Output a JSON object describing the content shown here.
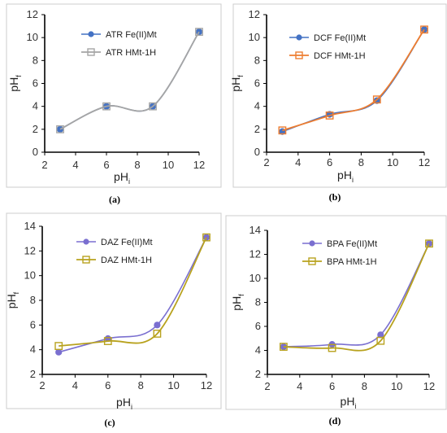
{
  "chart_data": [
    {
      "type": "line",
      "panel_label": "(a)",
      "xlabel": "pH",
      "xlabel_sub": "i",
      "ylabel": "pH",
      "ylabel_sub": "f",
      "xlim": [
        2,
        12
      ],
      "ylim": [
        0,
        12
      ],
      "xticks": [
        2,
        4,
        6,
        8,
        10,
        12
      ],
      "yticks": [
        0,
        2,
        4,
        6,
        8,
        10,
        12
      ],
      "legend_position": "top-left",
      "grid": false,
      "series": [
        {
          "name": "ATR Fe(II)Mt",
          "color": "#4472c4",
          "marker": "circle",
          "x": [
            3,
            6,
            9,
            12
          ],
          "y": [
            2.0,
            4.0,
            4.0,
            10.5
          ]
        },
        {
          "name": "ATR HMt-1H",
          "color": "#a5a5a5",
          "marker": "square",
          "x": [
            3,
            6,
            9,
            12
          ],
          "y": [
            2.0,
            4.0,
            4.0,
            10.5
          ]
        }
      ]
    },
    {
      "type": "line",
      "panel_label": "(b)",
      "xlabel": "pH",
      "xlabel_sub": "i",
      "ylabel": "pH",
      "ylabel_sub": "f",
      "xlim": [
        2,
        12
      ],
      "ylim": [
        0,
        12
      ],
      "xticks": [
        2,
        4,
        6,
        8,
        10,
        12
      ],
      "yticks": [
        0,
        2,
        4,
        6,
        8,
        10,
        12
      ],
      "legend_position": "top-left",
      "grid": false,
      "series": [
        {
          "name": "DCF Fe(II)Mt",
          "color": "#4472c4",
          "marker": "circle",
          "x": [
            3,
            6,
            9,
            12
          ],
          "y": [
            1.8,
            3.3,
            4.5,
            10.7
          ]
        },
        {
          "name": "DCF HMt-1H",
          "color": "#ed7d31",
          "marker": "square",
          "x": [
            3,
            6,
            9,
            12
          ],
          "y": [
            1.9,
            3.2,
            4.6,
            10.7
          ]
        }
      ]
    },
    {
      "type": "line",
      "panel_label": "(c)",
      "xlabel": "pH",
      "xlabel_sub": "i",
      "ylabel": "pH",
      "ylabel_sub": "f",
      "xlim": [
        2,
        12
      ],
      "ylim": [
        2,
        14
      ],
      "xticks": [
        2,
        4,
        6,
        8,
        10,
        12
      ],
      "yticks": [
        2,
        4,
        6,
        8,
        10,
        12,
        14
      ],
      "legend_position": "top-left",
      "grid": false,
      "series": [
        {
          "name": "DAZ  Fe(II)Mt",
          "color": "#7a6fd0",
          "marker": "circle",
          "x": [
            3,
            6,
            9,
            12
          ],
          "y": [
            3.8,
            4.9,
            6.0,
            13.1
          ]
        },
        {
          "name": "DAZ HMt-1H",
          "color": "#b8a21e",
          "marker": "square",
          "x": [
            3,
            6,
            9,
            12
          ],
          "y": [
            4.3,
            4.7,
            5.3,
            13.1
          ]
        }
      ]
    },
    {
      "type": "line",
      "panel_label": "(d)",
      "xlabel": "pH",
      "xlabel_sub": "i",
      "ylabel": "pH",
      "ylabel_sub": "f",
      "xlim": [
        2,
        12
      ],
      "ylim": [
        2,
        14
      ],
      "xticks": [
        2,
        4,
        6,
        8,
        10,
        12
      ],
      "yticks": [
        2,
        4,
        6,
        8,
        10,
        12,
        14
      ],
      "legend_position": "top-left",
      "grid": false,
      "series": [
        {
          "name": "BPA Fe(II)Mt",
          "color": "#7a6fd0",
          "marker": "circle",
          "x": [
            3,
            6,
            9,
            12
          ],
          "y": [
            4.3,
            4.5,
            5.3,
            12.9
          ]
        },
        {
          "name": "BPA HMt-1H",
          "color": "#b8a21e",
          "marker": "square",
          "x": [
            3,
            6,
            9,
            12
          ],
          "y": [
            4.3,
            4.2,
            4.8,
            12.9
          ]
        }
      ]
    }
  ]
}
